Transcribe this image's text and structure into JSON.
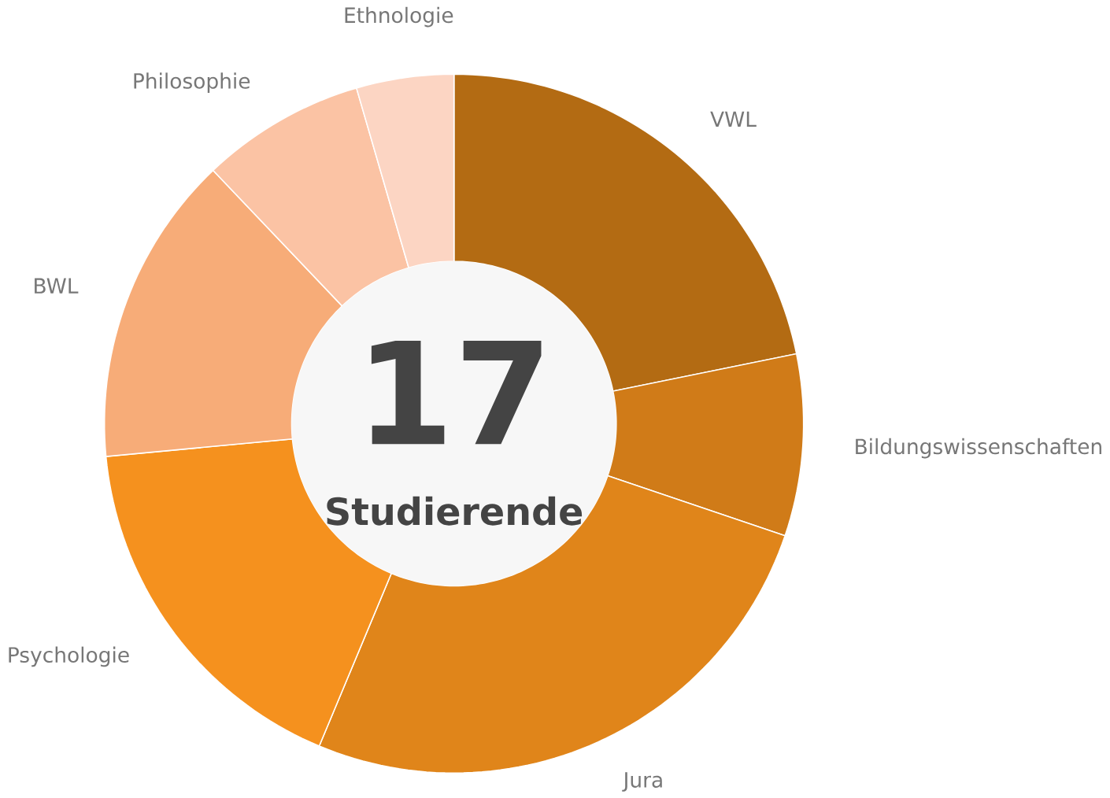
{
  "chart_data": {
    "type": "donut",
    "categories": [
      "VWL",
      "Bildungswissenschaften",
      "Jura",
      "Psychologie",
      "BWL",
      "Philosophie",
      "Ethnologie"
    ],
    "values": [
      21.8,
      8.4,
      26.1,
      17.2,
      14.4,
      7.6,
      4.5
    ],
    "colors": [
      "#b36b13",
      "#d07b18",
      "#e0851a",
      "#f5911e",
      "#f7ac78",
      "#fbc3a4",
      "#fcd5c3"
    ],
    "annotations": [
      "17",
      "Studierende"
    ]
  }
}
